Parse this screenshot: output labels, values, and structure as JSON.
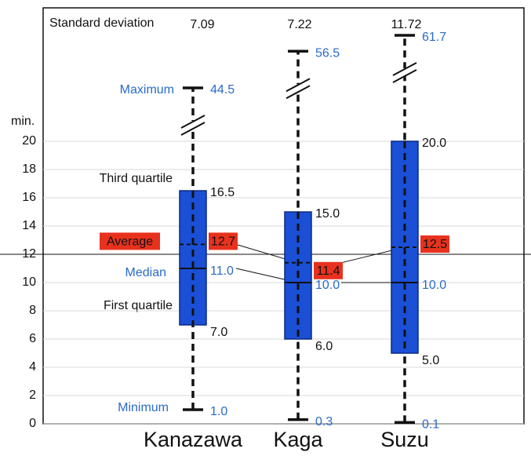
{
  "chart_data": {
    "type": "box",
    "y_label": "min.",
    "categories": [
      "Kanazawa",
      "Kaga",
      "Suzu"
    ],
    "ylim": [
      0,
      20
    ],
    "yticks": [
      0,
      2,
      4,
      6,
      8,
      10,
      12,
      14,
      16,
      18,
      20
    ],
    "grid": true,
    "axis_break": true,
    "color": "#1a4fd6",
    "mean_color": "#e8321e",
    "stat_labels": {
      "std": "Standard deviation",
      "max": "Maximum",
      "q3": "Third quartile",
      "mean": "Average",
      "median": "Median",
      "q1": "First quartile",
      "min": "Minimum"
    },
    "boxes": [
      {
        "min": 1.0,
        "q1": 7.0,
        "median": 11.0,
        "q3": 16.5,
        "max": 44.5,
        "mean": 12.7,
        "std": 7.09,
        "value_labels": {
          "min": "1.0",
          "q1": "7.0",
          "median": "11.0",
          "q3": "16.5",
          "max": "44.5",
          "mean": "12.7",
          "std": "7.09"
        }
      },
      {
        "min": 0.3,
        "q1": 6.0,
        "median": 10.0,
        "q3": 15.0,
        "max": 56.5,
        "mean": 11.4,
        "std": 7.22,
        "value_labels": {
          "min": "0.3",
          "q1": "6.0",
          "median": "10.0",
          "q3": "15.0",
          "max": "56.5",
          "mean": "11.4",
          "std": "7.22"
        }
      },
      {
        "min": 0.1,
        "q1": 5.0,
        "median": 10.0,
        "q3": 20.0,
        "max": 61.7,
        "mean": 12.5,
        "std": 11.72,
        "value_labels": {
          "min": "0.1",
          "q1": "5.0",
          "median": "10.0",
          "q3": "20.0",
          "max": "61.7",
          "mean": "12.5",
          "std": "11.72"
        }
      }
    ]
  }
}
